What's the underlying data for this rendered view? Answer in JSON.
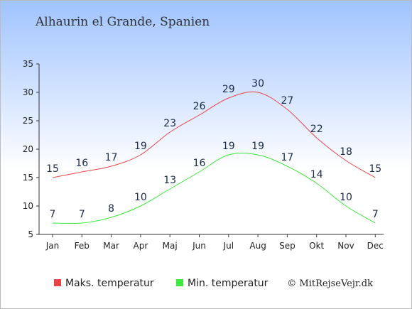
{
  "chart_data": {
    "type": "line",
    "title": "Alhaurin el Grande, Spanien",
    "categories": [
      "Jan",
      "Feb",
      "Mar",
      "Apr",
      "Maj",
      "Jun",
      "Jul",
      "Aug",
      "Sep",
      "Okt",
      "Nov",
      "Dec"
    ],
    "series": [
      {
        "name": "Maks. temperatur",
        "color": "#e84646",
        "values": [
          15,
          16,
          17,
          19,
          23,
          26,
          29,
          30,
          27,
          22,
          18,
          15
        ]
      },
      {
        "name": "Min. temperatur",
        "color": "#3ee83e",
        "values": [
          7,
          7,
          8,
          10,
          13,
          16,
          19,
          19,
          17,
          14,
          10,
          7
        ]
      }
    ],
    "yticks": [
      5,
      10,
      15,
      20,
      25,
      30,
      35
    ],
    "ylim": [
      5,
      35
    ],
    "xlabel": "",
    "ylabel": "",
    "legend_position": "bottom-left",
    "background_gradient": [
      "#9fc3ff",
      "#ffffff"
    ]
  },
  "credit": "© MitRejseVejr.dk"
}
